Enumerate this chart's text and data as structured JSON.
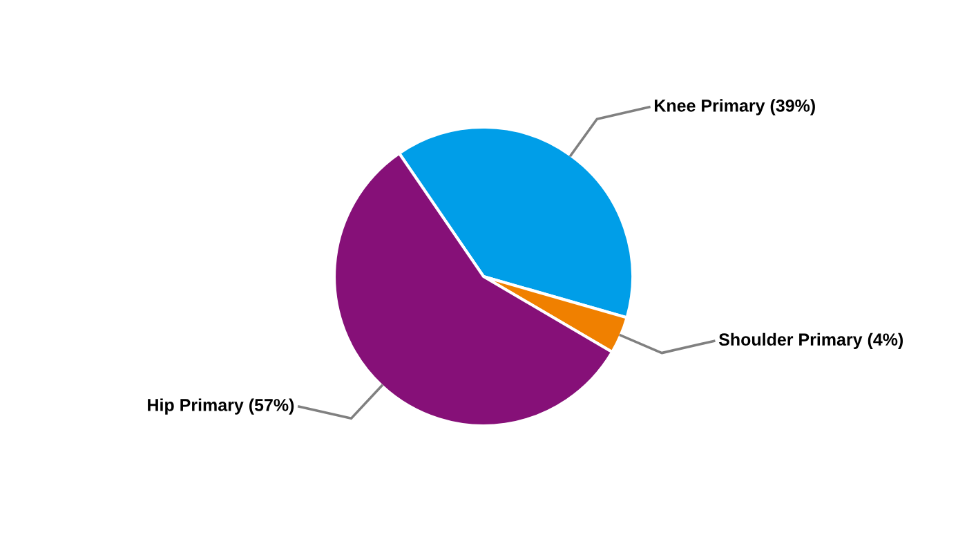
{
  "chart_data": {
    "type": "pie",
    "categories": [
      "Knee Primary (39%)",
      "Shoulder Primary (4%)",
      "Hip Primary (57%)"
    ],
    "values": [
      39,
      4,
      57
    ],
    "colors": [
      "#009ee8",
      "#f08000",
      "#861078"
    ]
  }
}
